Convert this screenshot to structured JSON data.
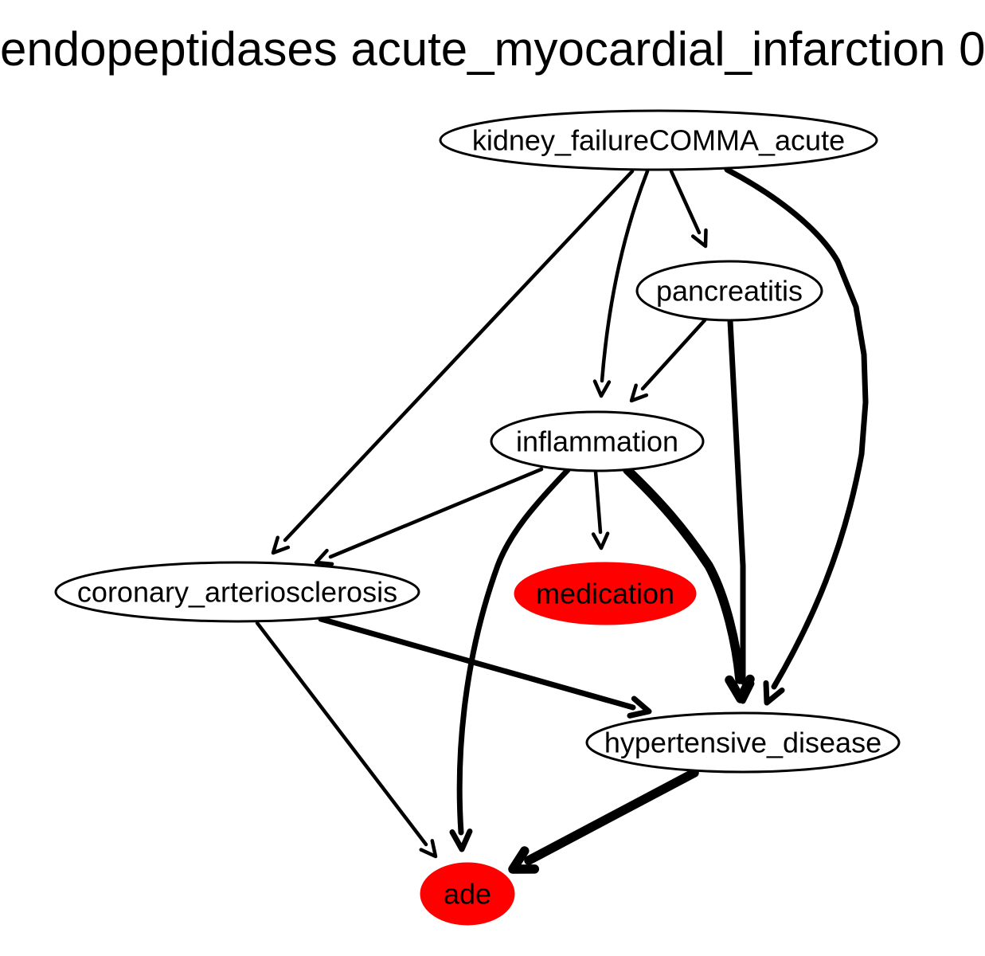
{
  "title": "endopeptidases acute_myocardial_infarction 0",
  "colors": {
    "highlight": "#ff0000",
    "outline": "#000000",
    "background": "#ffffff"
  },
  "nodes": [
    {
      "id": "kidney_failure",
      "label": "kidney_failureCOMMA_acute",
      "highlighted": false
    },
    {
      "id": "pancreatitis",
      "label": "pancreatitis",
      "highlighted": false
    },
    {
      "id": "inflammation",
      "label": "inflammation",
      "highlighted": false
    },
    {
      "id": "coronary_arteriosclerosis",
      "label": "coronary_arteriosclerosis",
      "highlighted": false
    },
    {
      "id": "medication",
      "label": "medication",
      "highlighted": true
    },
    {
      "id": "hypertensive_disease",
      "label": "hypertensive_disease",
      "highlighted": false
    },
    {
      "id": "ade",
      "label": "ade",
      "highlighted": true
    }
  ],
  "edges": [
    {
      "from": "kidney_failure",
      "to": "coronary_arteriosclerosis",
      "weight": 1
    },
    {
      "from": "kidney_failure",
      "to": "inflammation",
      "weight": 1
    },
    {
      "from": "kidney_failure",
      "to": "pancreatitis",
      "weight": 1
    },
    {
      "from": "kidney_failure",
      "to": "hypertensive_disease",
      "weight": 2
    },
    {
      "from": "pancreatitis",
      "to": "inflammation",
      "weight": 1
    },
    {
      "from": "pancreatitis",
      "to": "hypertensive_disease",
      "weight": 2
    },
    {
      "from": "inflammation",
      "to": "coronary_arteriosclerosis",
      "weight": 1
    },
    {
      "from": "inflammation",
      "to": "medication",
      "weight": 1
    },
    {
      "from": "inflammation",
      "to": "ade",
      "weight": 2
    },
    {
      "from": "inflammation",
      "to": "hypertensive_disease",
      "weight": 3
    },
    {
      "from": "coronary_arteriosclerosis",
      "to": "ade",
      "weight": 1
    },
    {
      "from": "coronary_arteriosclerosis",
      "to": "hypertensive_disease",
      "weight": 2
    },
    {
      "from": "hypertensive_disease",
      "to": "ade",
      "weight": 3
    }
  ]
}
